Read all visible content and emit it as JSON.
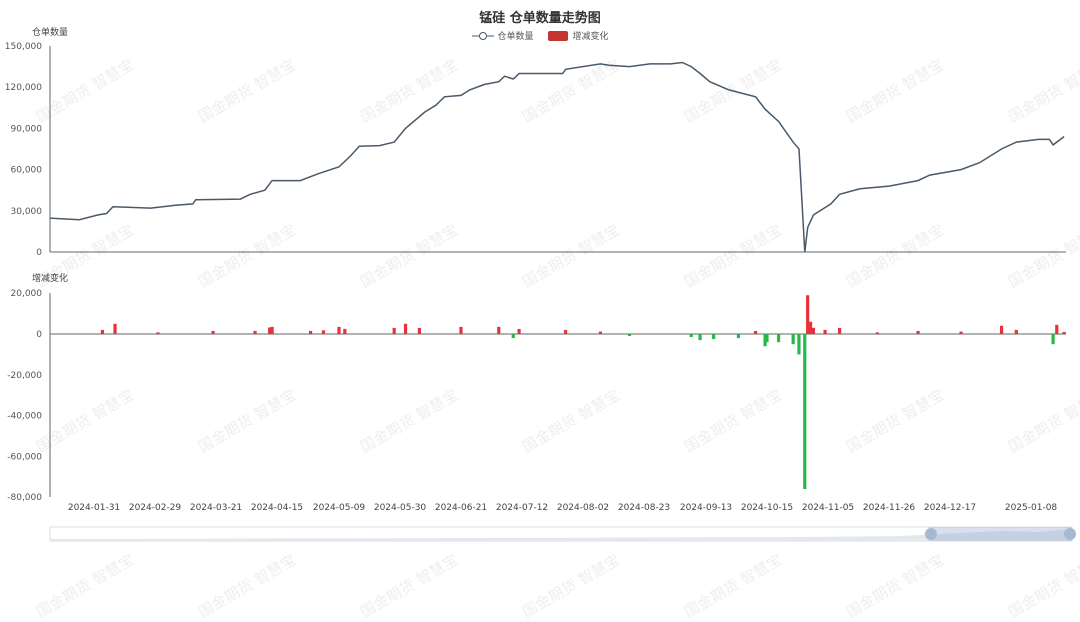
{
  "chart_data": [
    {
      "type": "line",
      "title": "锰硅 仓单数量走势图",
      "ylabel": "仓单数量",
      "legend": [
        "仓单数量",
        "增减变化"
      ],
      "legend_placement": "top-center",
      "ylim": [
        0,
        150000
      ],
      "yticks": [
        "0",
        "30,000",
        "60,000",
        "90,000",
        "120,000",
        "150,000"
      ],
      "color": "#4a5968",
      "points": [
        [
          "2024-01-10",
          24700
        ],
        [
          "2024-01-24",
          23500
        ],
        [
          "2024-02-02",
          27000
        ],
        [
          "2024-02-06",
          28000
        ],
        [
          "2024-02-09",
          33000
        ],
        [
          "2024-02-27",
          32000
        ],
        [
          "2024-03-07",
          34000
        ],
        [
          "2024-03-13",
          35000
        ],
        [
          "2024-03-14",
          38000
        ],
        [
          "2024-03-31",
          38500
        ],
        [
          "2024-04-04",
          42000
        ],
        [
          "2024-04-10",
          45000
        ],
        [
          "2024-04-13",
          52000
        ],
        [
          "2024-04-24",
          52000
        ],
        [
          "2024-05-01",
          57000
        ],
        [
          "2024-05-09",
          62000
        ],
        [
          "2024-05-13",
          70000
        ],
        [
          "2024-05-16",
          77000
        ],
        [
          "2024-05-23",
          77500
        ],
        [
          "2024-05-28",
          80000
        ],
        [
          "2024-06-01",
          90000
        ],
        [
          "2024-06-08",
          102000
        ],
        [
          "2024-06-12",
          107000
        ],
        [
          "2024-06-15",
          113000
        ],
        [
          "2024-06-21",
          114000
        ],
        [
          "2024-06-24",
          118000
        ],
        [
          "2024-06-29",
          122000
        ],
        [
          "2024-07-04",
          124000
        ],
        [
          "2024-07-06",
          128000
        ],
        [
          "2024-07-09",
          126000
        ],
        [
          "2024-07-11",
          130000
        ],
        [
          "2024-07-26",
          130000
        ],
        [
          "2024-07-27",
          133000
        ],
        [
          "2024-08-08",
          137000
        ],
        [
          "2024-08-11",
          136000
        ],
        [
          "2024-08-18",
          135000
        ],
        [
          "2024-08-25",
          137000
        ],
        [
          "2024-09-01",
          137000
        ],
        [
          "2024-09-05",
          138000
        ],
        [
          "2024-09-08",
          135000
        ],
        [
          "2024-09-11",
          130000
        ],
        [
          "2024-09-15",
          124000
        ],
        [
          "2024-09-25",
          118000
        ],
        [
          "2024-10-09",
          113000
        ],
        [
          "2024-10-14",
          104000
        ],
        [
          "2024-10-19",
          95000
        ],
        [
          "2024-10-24",
          80000
        ],
        [
          "2024-10-26",
          75000
        ],
        [
          "2024-10-28",
          0
        ],
        [
          "2024-10-29",
          18000
        ],
        [
          "2024-10-31",
          27000
        ],
        [
          "2024-11-06",
          35000
        ],
        [
          "2024-11-09",
          42000
        ],
        [
          "2024-11-16",
          46000
        ],
        [
          "2024-11-26",
          48000
        ],
        [
          "2024-12-06",
          52000
        ],
        [
          "2024-12-10",
          56000
        ],
        [
          "2024-12-20",
          60000
        ],
        [
          "2024-12-25",
          65000
        ],
        [
          "2024-12-31",
          75000
        ],
        [
          "2025-01-04",
          80000
        ],
        [
          "2025-01-10",
          82000
        ],
        [
          "2025-01-13",
          82000
        ],
        [
          "2025-01-14",
          78000
        ],
        [
          "2025-01-17",
          84000
        ]
      ]
    },
    {
      "type": "bar",
      "ylabel": "增减变化",
      "ylim": [
        -80000,
        20000
      ],
      "yticks": [
        "-80,000",
        "-60,000",
        "-40,000",
        "-20,000",
        "0",
        "20,000"
      ],
      "positive_color": "#e8313a",
      "negative_color": "#27b84a",
      "bars": [
        [
          "2024-02-04",
          2000
        ],
        [
          "2024-02-10",
          5000
        ],
        [
          "2024-03-01",
          800
        ],
        [
          "2024-03-20",
          1500
        ],
        [
          "2024-04-06",
          1500
        ],
        [
          "2024-04-12",
          3200
        ],
        [
          "2024-04-13",
          3500
        ],
        [
          "2024-04-28",
          1500
        ],
        [
          "2024-05-03",
          1800
        ],
        [
          "2024-05-09",
          3500
        ],
        [
          "2024-05-11",
          2500
        ],
        [
          "2024-05-28",
          3000
        ],
        [
          "2024-06-01",
          5000
        ],
        [
          "2024-06-06",
          3000
        ],
        [
          "2024-06-21",
          3500
        ],
        [
          "2024-07-04",
          3500
        ],
        [
          "2024-07-09",
          -2000
        ],
        [
          "2024-07-11",
          2500
        ],
        [
          "2024-07-27",
          2000
        ],
        [
          "2024-08-08",
          1200
        ],
        [
          "2024-08-18",
          -1000
        ],
        [
          "2024-09-08",
          -1500
        ],
        [
          "2024-09-11",
          -3000
        ],
        [
          "2024-09-17",
          -2500
        ],
        [
          "2024-09-30",
          -2000
        ],
        [
          "2024-10-09",
          1500
        ],
        [
          "2024-10-14",
          -6000
        ],
        [
          "2024-10-15",
          -4000
        ],
        [
          "2024-10-19",
          -4000
        ],
        [
          "2024-10-24",
          -5000
        ],
        [
          "2024-10-26",
          -10000
        ],
        [
          "2024-10-28",
          -76000
        ],
        [
          "2024-10-29",
          19000
        ],
        [
          "2024-10-30",
          6000
        ],
        [
          "2024-10-31",
          3000
        ],
        [
          "2024-11-04",
          2000
        ],
        [
          "2024-11-09",
          3000
        ],
        [
          "2024-11-22",
          800
        ],
        [
          "2024-12-06",
          1500
        ],
        [
          "2024-12-20",
          1200
        ],
        [
          "2024-12-31",
          4000
        ],
        [
          "2025-01-04",
          2000
        ],
        [
          "2025-01-14",
          -5000
        ],
        [
          "2025-01-15",
          4500
        ],
        [
          "2025-01-17",
          1000
        ]
      ]
    }
  ],
  "xticks": [
    "2024-01-31",
    "2024-02-29",
    "2024-03-21",
    "2024-04-15",
    "2024-05-09",
    "2024-05-30",
    "2024-06-21",
    "2024-07-12",
    "2024-08-02",
    "2024-08-23",
    "2024-09-13",
    "2024-10-15",
    "2024-11-05",
    "2024-11-26",
    "2024-12-17",
    "2025-01-08"
  ],
  "datazoom": {
    "start_percent": 86,
    "end_percent": 100
  },
  "watermark": "国金期货 智慧宝"
}
